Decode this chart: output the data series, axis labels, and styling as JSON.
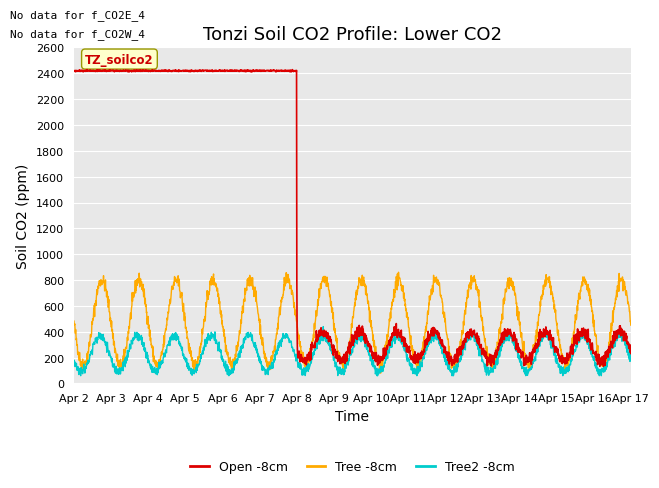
{
  "title": "Tonzi Soil CO2 Profile: Lower CO2",
  "ylabel": "Soil CO2 (ppm)",
  "xlabel": "Time",
  "ylim": [
    0,
    2600
  ],
  "xlim": [
    0,
    15
  ],
  "x_tick_labels": [
    "Apr 2",
    "Apr 3",
    "Apr 4",
    "Apr 5",
    "Apr 6",
    "Apr 7",
    "Apr 8",
    "Apr 9",
    "Apr 10",
    "Apr 11",
    "Apr 12",
    "Apr 13",
    "Apr 14",
    "Apr 15",
    "Apr 16",
    "Apr 17"
  ],
  "x_tick_pos": [
    0,
    1,
    2,
    3,
    4,
    5,
    6,
    7,
    8,
    9,
    10,
    11,
    12,
    13,
    14,
    15
  ],
  "no_data_text1": "No data for f_CO2E_4",
  "no_data_text2": "No data for f_CO2W_4",
  "legend_box_label": "TZ_soilco2",
  "legend_entries": [
    "Open -8cm",
    "Tree -8cm",
    "Tree2 -8cm"
  ],
  "line_colors": [
    "#dd0000",
    "#ffaa00",
    "#00cccc"
  ],
  "background_color": "#e8e8e8",
  "title_fontsize": 13,
  "axis_label_fontsize": 10,
  "tick_fontsize": 8,
  "yticks": [
    0,
    200,
    400,
    600,
    800,
    1000,
    1200,
    1400,
    1600,
    1800,
    2000,
    2200,
    2400,
    2600
  ]
}
